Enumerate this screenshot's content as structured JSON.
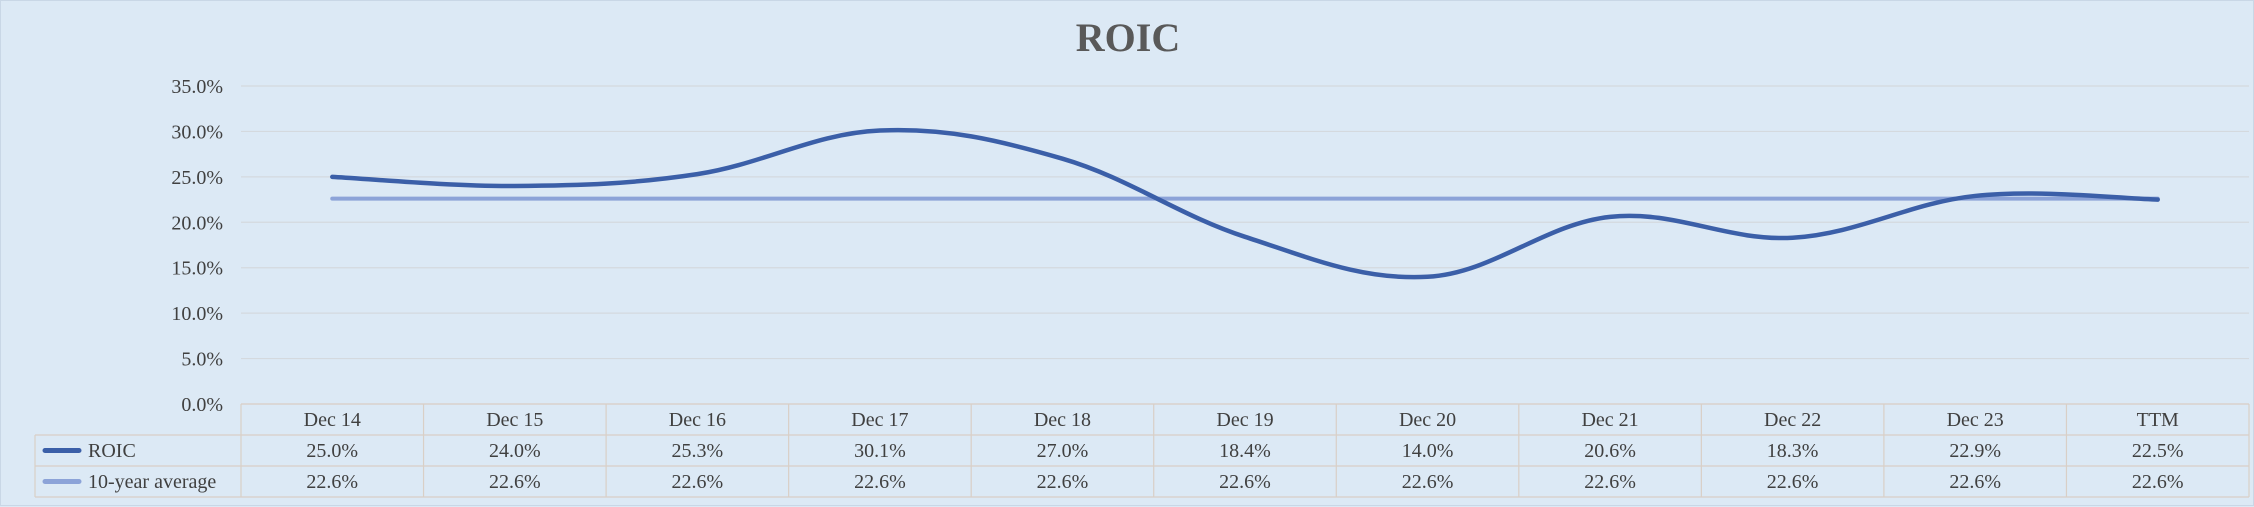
{
  "chart_data": {
    "type": "line",
    "title": "ROIC",
    "categories": [
      "Dec 14",
      "Dec 15",
      "Dec 16",
      "Dec 17",
      "Dec 18",
      "Dec 19",
      "Dec 20",
      "Dec 21",
      "Dec 22",
      "Dec 23",
      "TTM"
    ],
    "series": [
      {
        "name": "ROIC",
        "values": [
          25.0,
          24.0,
          25.3,
          30.1,
          27.0,
          18.4,
          14.0,
          20.6,
          18.3,
          22.9,
          22.5
        ],
        "labels": [
          "25.0%",
          "24.0%",
          "25.3%",
          "30.1%",
          "27.0%",
          "18.4%",
          "14.0%",
          "20.6%",
          "18.3%",
          "22.9%",
          "22.5%"
        ],
        "color": "#3b5fa8"
      },
      {
        "name": "10-year average",
        "values": [
          22.6,
          22.6,
          22.6,
          22.6,
          22.6,
          22.6,
          22.6,
          22.6,
          22.6,
          22.6,
          22.6
        ],
        "labels": [
          "22.6%",
          "22.6%",
          "22.6%",
          "22.6%",
          "22.6%",
          "22.6%",
          "22.6%",
          "22.6%",
          "22.6%",
          "22.6%",
          "22.6%"
        ],
        "color": "#8ca3d8"
      }
    ],
    "ylim": [
      0,
      35
    ],
    "yticks": [
      "0.0%",
      "5.0%",
      "10.0%",
      "15.0%",
      "20.0%",
      "25.0%",
      "30.0%",
      "35.0%"
    ],
    "grid": true,
    "legend": "data-table",
    "smooth": true
  }
}
